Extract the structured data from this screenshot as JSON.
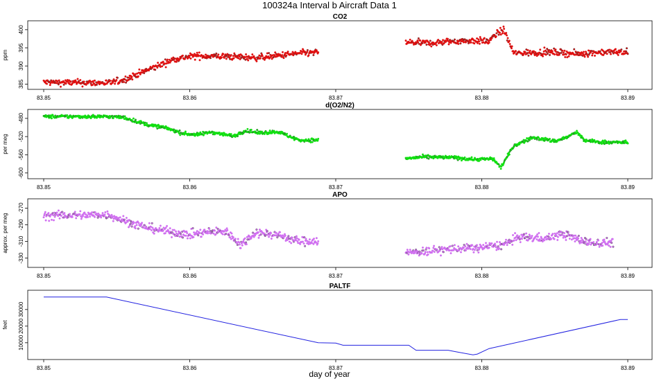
{
  "figure": {
    "title": "100324a   Interval b Aircraft Data 1",
    "xlabel": "day of year"
  },
  "chart_data": [
    {
      "type": "scatter",
      "title": "CO2",
      "ylabel": "ppm",
      "color": "#e01010",
      "xlim": [
        83.85,
        83.89
      ],
      "ylim": [
        384.5,
        401.5
      ],
      "yticks": [
        385,
        390,
        395,
        400
      ],
      "xticks": [
        83.85,
        83.86,
        83.87,
        83.88,
        83.89
      ],
      "segments": [
        {
          "x": [
            83.85,
            83.8545,
            83.8555,
            83.8575,
            83.859,
            83.8605,
            83.8625,
            83.8645,
            83.866,
            83.8675,
            83.8688
          ],
          "y": [
            385.5,
            385.3,
            386.2,
            389.5,
            392.0,
            392.8,
            392.6,
            392.3,
            392.8,
            393.5,
            393.7
          ]
        },
        {
          "x": [
            83.8748,
            83.8765,
            83.878,
            83.8795,
            83.8805,
            83.881,
            83.8815,
            83.8822,
            83.8835,
            83.885,
            83.8865,
            83.888,
            83.89
          ],
          "y": [
            396.5,
            396.3,
            396.8,
            397.0,
            396.8,
            398.8,
            400.0,
            393.5,
            393.7,
            393.8,
            393.3,
            393.8,
            393.9
          ]
        }
      ],
      "noise": 0.7
    },
    {
      "type": "scatter",
      "title": "d(O2/N2)",
      "ylabel": "per meg",
      "color": "#10e010",
      "xlim": [
        83.85,
        83.89
      ],
      "ylim": [
        -605,
        -468
      ],
      "yticks": [
        -480,
        -520,
        -560,
        -600
      ],
      "xticks": [
        83.85,
        83.86,
        83.87,
        83.88,
        83.89
      ],
      "segments": [
        {
          "x": [
            83.85,
            83.8545,
            83.8555,
            83.857,
            83.8585,
            83.8595,
            83.8605,
            83.8615,
            83.863,
            83.8638,
            83.8648,
            83.866,
            83.8675,
            83.8688
          ],
          "y": [
            -476,
            -476,
            -478,
            -493,
            -502,
            -513,
            -516,
            -510,
            -519,
            -507,
            -512,
            -509,
            -528,
            -528
          ]
        },
        {
          "x": [
            83.8748,
            83.876,
            83.878,
            83.8795,
            83.8808,
            83.8813,
            83.8822,
            83.8835,
            83.885,
            83.8858,
            83.8865,
            83.887,
            83.888,
            83.89
          ],
          "y": [
            -568,
            -565,
            -566,
            -570,
            -569,
            -588,
            -540,
            -522,
            -530,
            -522,
            -510,
            -528,
            -532,
            -533
          ]
        }
      ],
      "noise": 3
    },
    {
      "type": "scatter",
      "title": "APO",
      "ylabel": "approx. per meg",
      "color": "#d070f0",
      "xlim": [
        83.85,
        83.89
      ],
      "ylim": [
        -337,
        -263
      ],
      "yticks": [
        -270,
        -290,
        -310,
        -330
      ],
      "xticks": [
        83.85,
        83.86,
        83.87,
        83.88,
        83.89
      ],
      "segments": [
        {
          "x": [
            83.85,
            83.8545,
            83.8555,
            83.857,
            83.8585,
            83.86,
            83.861,
            83.8625,
            83.8635,
            83.8645,
            83.866,
            83.8675,
            83.8688
          ],
          "y": [
            -279,
            -278,
            -285,
            -293,
            -298,
            -302,
            -299,
            -298,
            -314,
            -299,
            -302,
            -310,
            -309
          ]
        },
        {
          "x": [
            83.8748,
            83.876,
            83.878,
            83.8795,
            83.8805,
            83.8815,
            83.8825,
            83.8845,
            83.8855,
            83.8865,
            83.8875,
            83.889
          ],
          "y": [
            -324,
            -322,
            -319,
            -318,
            -316,
            -314,
            -305,
            -306,
            -301,
            -307,
            -312,
            -311
          ]
        }
      ],
      "noise": 4
    },
    {
      "type": "line",
      "title": "PALTF",
      "ylabel": "feet",
      "color": "#2020e0",
      "xlim": [
        83.85,
        83.89
      ],
      "ylim": [
        2000,
        39500
      ],
      "yticks": [
        10000,
        20000,
        30000
      ],
      "xticks": [
        83.85,
        83.86,
        83.87,
        83.88,
        83.89
      ],
      "series": [
        {
          "name": "PALTF",
          "x": [
            83.85,
            83.8543,
            83.8688,
            83.87,
            83.8705,
            83.875,
            83.8755,
            83.8777,
            83.8781,
            83.8794,
            83.8797,
            83.8805,
            83.8895,
            83.89
          ],
          "y": [
            37500,
            37500,
            10000,
            9800,
            8500,
            8500,
            5500,
            5500,
            4800,
            2700,
            3200,
            6500,
            24000,
            24000
          ]
        }
      ]
    }
  ]
}
